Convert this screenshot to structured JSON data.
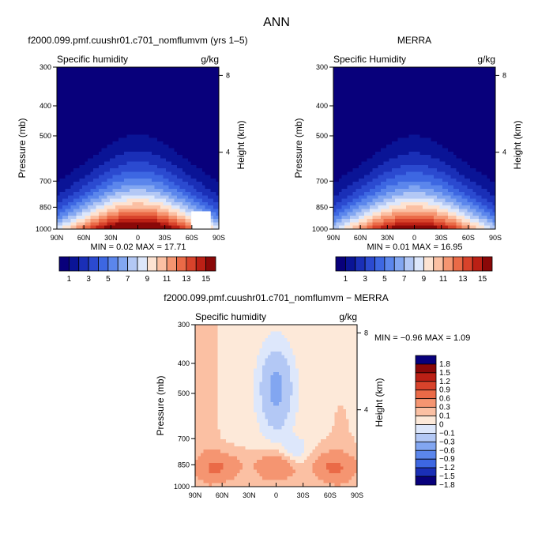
{
  "figure_title": "ANN",
  "colors": {
    "humidity_scale": [
      "#08007b",
      "#0a1496",
      "#1a2fb7",
      "#2b4ad0",
      "#3d67e2",
      "#5b86ec",
      "#82a6f1",
      "#b3c8f5",
      "#dde7fb",
      "#fde3d2",
      "#fbc0a3",
      "#f59571",
      "#ea6a47",
      "#d8432b",
      "#bb2015",
      "#8a0808"
    ],
    "diff_scale": [
      "#08007b",
      "#1a2fb7",
      "#3d67e2",
      "#5b86ec",
      "#82a6f1",
      "#b3c8f5",
      "#dde7fb",
      "#fde9d9",
      "#fbc0a3",
      "#f59571",
      "#ea6a47",
      "#d8432b",
      "#bb2015",
      "#8a0808"
    ]
  },
  "chart_data": [
    {
      "type": "contour",
      "title": "f2000.099.pmf.cuushr01.c701_nomflumvm (yrs 1–5)",
      "subtitle_left": "Specific humidity",
      "subtitle_right": "g/kg",
      "ylabel": "Pressure (mb)",
      "y2label": "Height (km)",
      "x_ticks": [
        "90N",
        "60N",
        "30N",
        "0",
        "30S",
        "60S",
        "90S"
      ],
      "y_ticks": [
        "300",
        "400",
        "500",
        "700",
        "850",
        "1000"
      ],
      "y2_ticks": [
        "8",
        "4"
      ],
      "min_max": "MIN =   0.02   MAX =   17.71",
      "min": 0.02,
      "max": 17.71,
      "peak_pressure_mb": 980,
      "colorbar_labels": [
        "1",
        "3",
        "5",
        "7",
        "9",
        "11",
        "13",
        "15"
      ]
    },
    {
      "type": "contour",
      "title": "MERRA",
      "subtitle_left": "Specific Humidity",
      "subtitle_right": "g/kg",
      "ylabel": "Pressure (mb)",
      "y2label": "Height (km)",
      "x_ticks": [
        "90N",
        "60N",
        "30N",
        "0",
        "30S",
        "60S",
        "90S"
      ],
      "y_ticks": [
        "300",
        "400",
        "500",
        "700",
        "850",
        "1000"
      ],
      "y2_ticks": [
        "8",
        "4"
      ],
      "min_max": "MIN =   0.01   MAX =   16.95",
      "min": 0.01,
      "max": 16.95,
      "peak_pressure_mb": 980,
      "colorbar_labels": [
        "1",
        "3",
        "5",
        "7",
        "9",
        "11",
        "13",
        "15"
      ]
    },
    {
      "type": "contour",
      "title": "f2000.099.pmf.cuushr01.c701_nomflumvm − MERRA",
      "subtitle_left": "Specific humidity",
      "subtitle_right": "g/kg",
      "ylabel": "Pressure (mb)",
      "y2label": "Height (km)",
      "x_ticks": [
        "90N",
        "60N",
        "30N",
        "0",
        "30S",
        "60S",
        "90S"
      ],
      "y_ticks": [
        "300",
        "400",
        "500",
        "700",
        "850",
        "1000"
      ],
      "y2_ticks": [
        "8",
        "4"
      ],
      "min_max": "MIN =    −0.96   MAX =    1.09",
      "min": -0.96,
      "max": 1.09,
      "colorbar_labels": [
        "1.8",
        "1.5",
        "1.2",
        "0.9",
        "0.6",
        "0.3",
        "0.1",
        "0",
        "−0.1",
        "−0.3",
        "−0.6",
        "−0.9",
        "−1.2",
        "−1.5",
        "−1.8"
      ]
    }
  ]
}
